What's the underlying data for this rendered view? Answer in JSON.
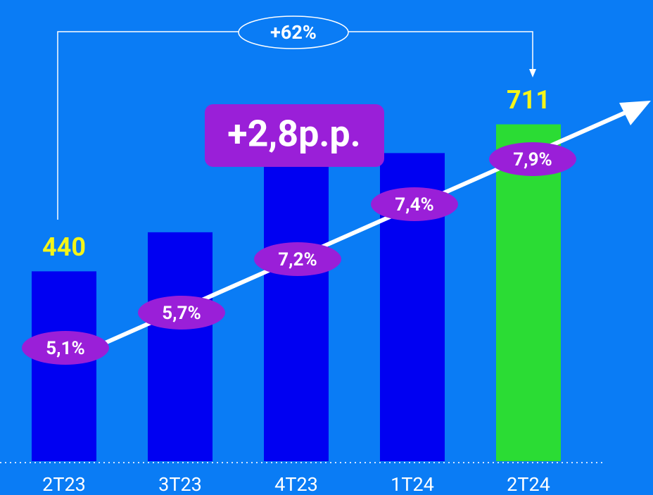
{
  "chart_data": {
    "type": "bar",
    "categories": [
      "2T23",
      "3T23",
      "4T23",
      "1T24",
      "2T24"
    ],
    "values": [
      440,
      512,
      640,
      658,
      711
    ],
    "value_labels": [
      "440",
      null,
      null,
      null,
      "711"
    ],
    "colors": [
      "#0000f2",
      "#0000f2",
      "#0000f2",
      "#0000f2",
      "#2bdc34"
    ],
    "ylim": [
      90,
      800
    ],
    "rates": {
      "values": [
        5.1,
        5.7,
        7.2,
        7.4,
        7.9
      ],
      "value_labels": [
        "5,1%",
        "5,7%",
        "7,2%",
        "7,4%",
        "7,9%"
      ],
      "color": "#9a1fd8"
    },
    "annotations": {
      "growth": "+62%",
      "rate_change": "+2,8p.p."
    }
  }
}
